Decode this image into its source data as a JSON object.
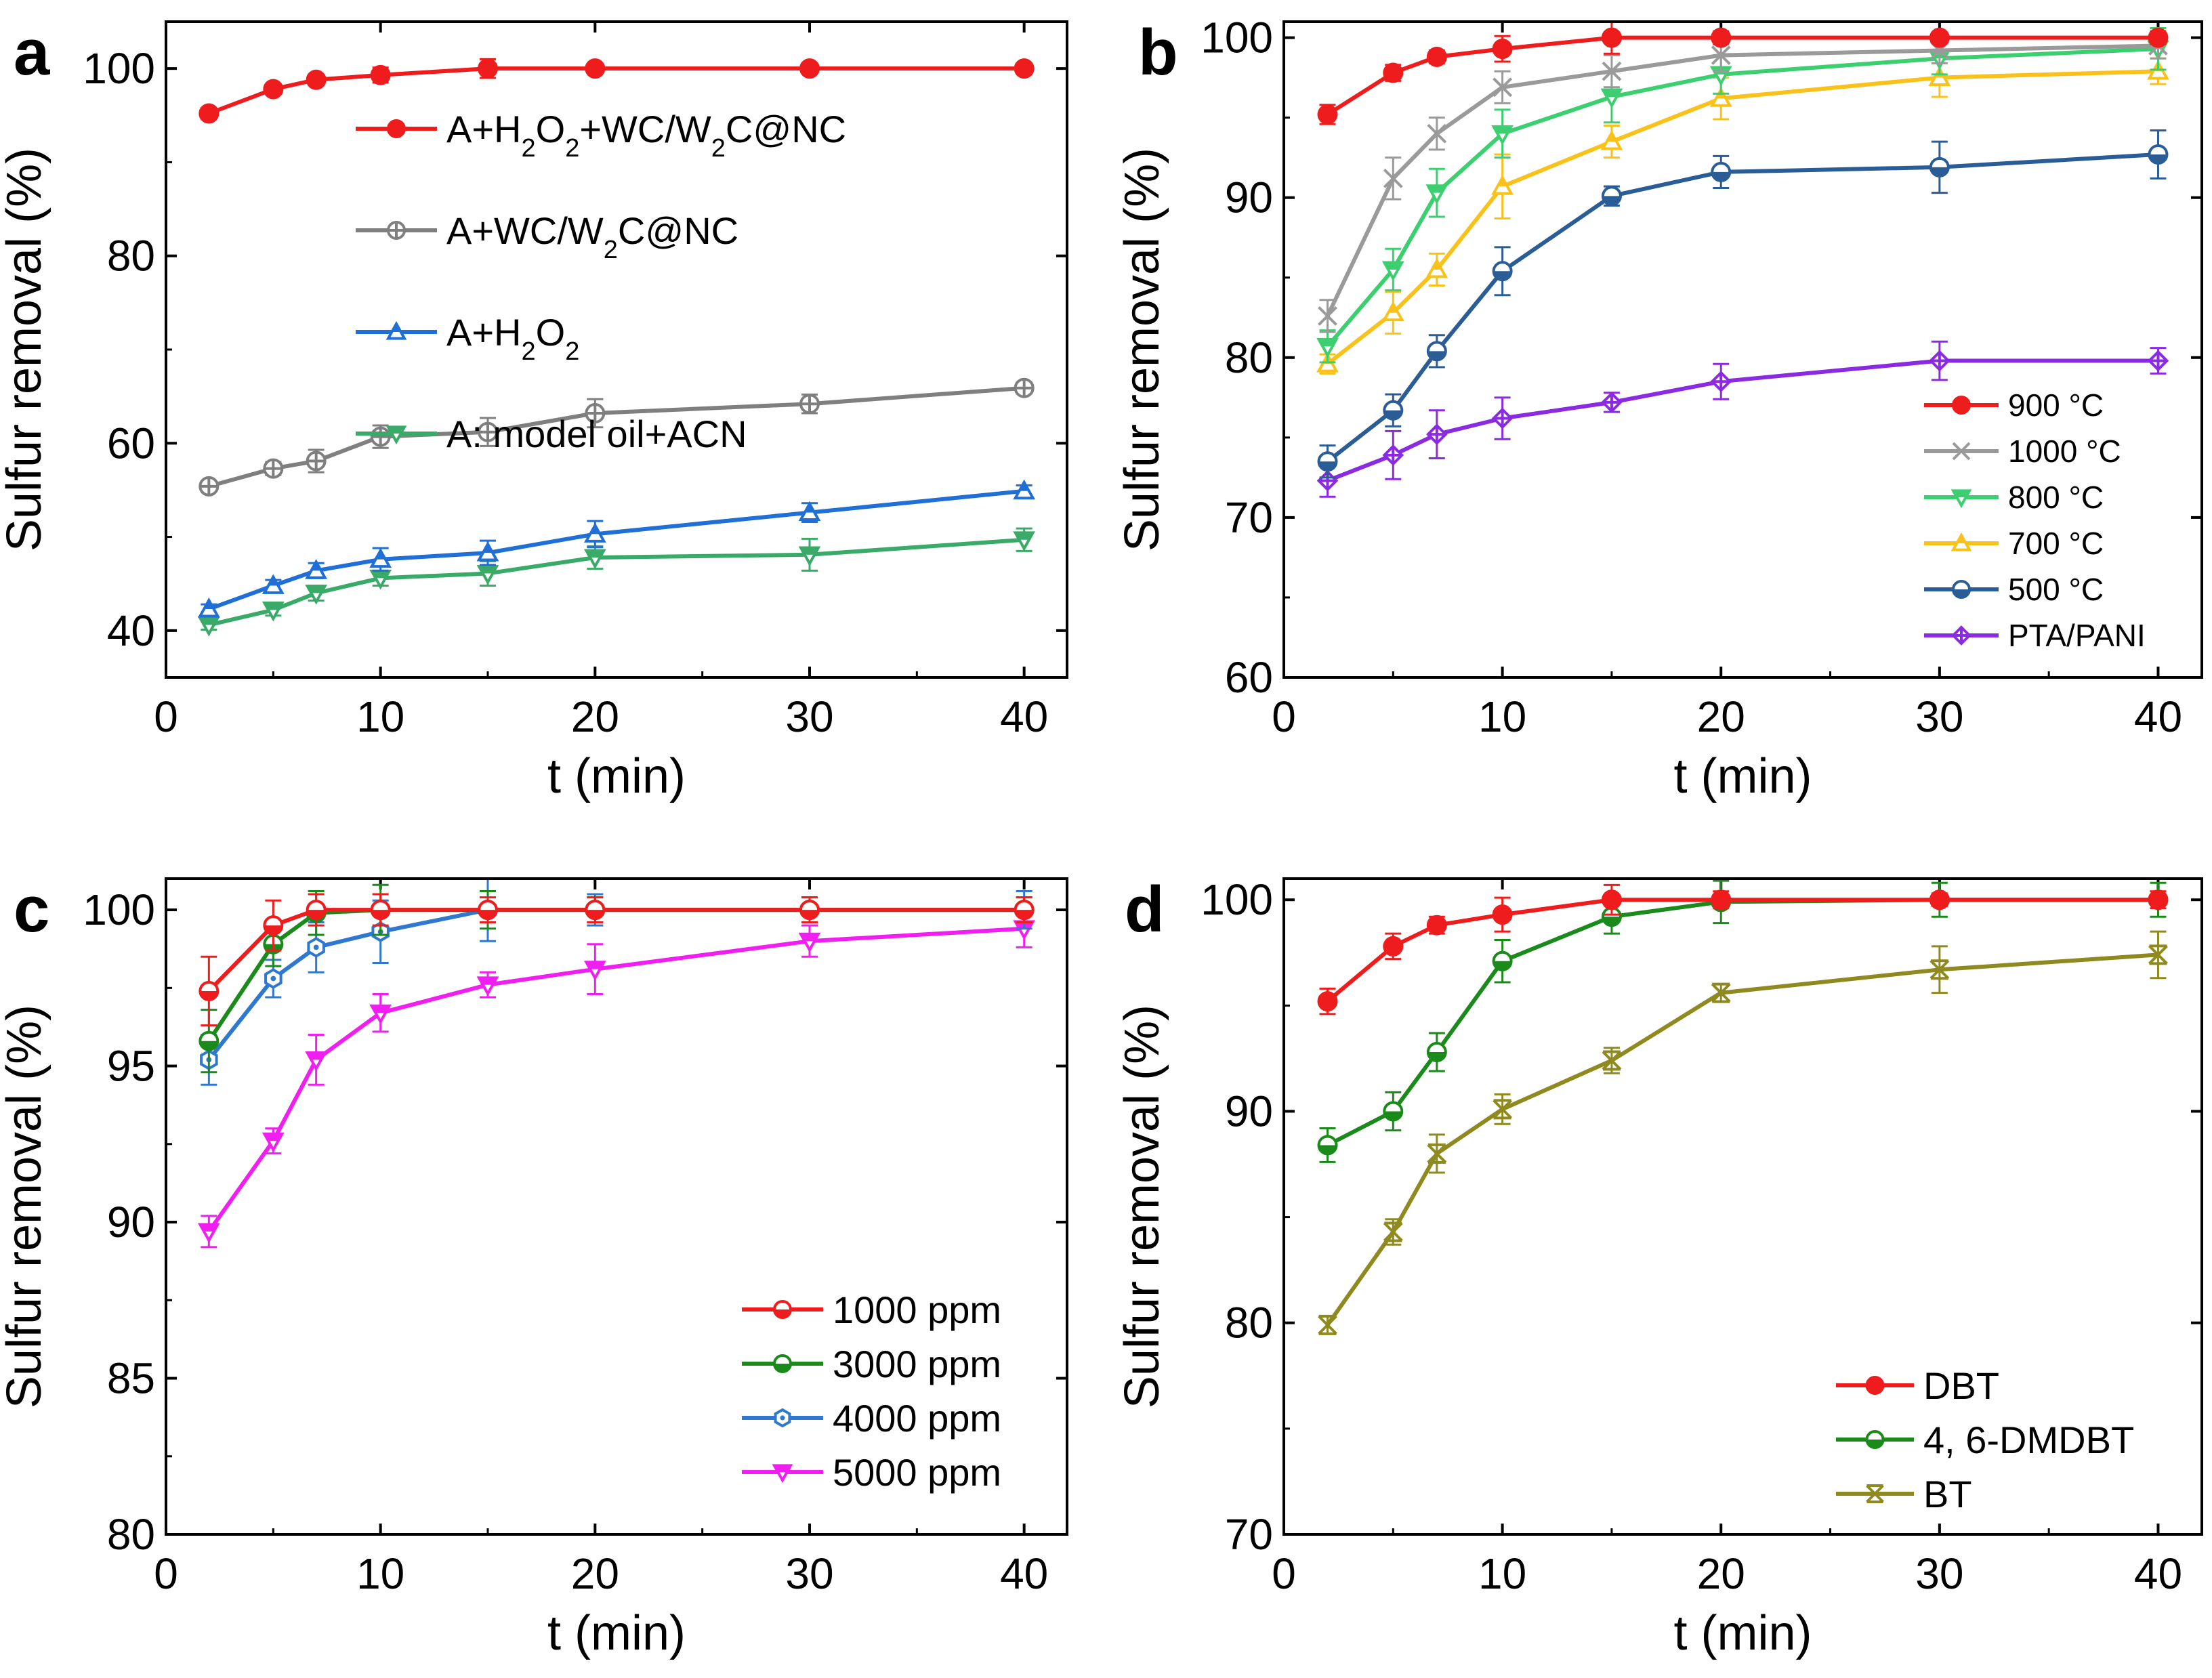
{
  "figure": {
    "panels": [
      "a",
      "b",
      "c",
      "d"
    ]
  },
  "chart_data": [
    {
      "id": "a",
      "type": "line",
      "panel_label": "a",
      "xlabel": "t (min)",
      "ylabel": "Sulfur removal (%)",
      "xlim": [
        0,
        42
      ],
      "ylim": [
        35,
        105
      ],
      "xticks": [
        0,
        10,
        20,
        30,
        40
      ],
      "yticks": [
        40,
        60,
        80,
        100
      ],
      "x": [
        2,
        5,
        7,
        10,
        15,
        20,
        30,
        40
      ],
      "legend_position": "top-center",
      "series": [
        {
          "name": "A+H2O2+WC/W2C@NC",
          "legend": [
            [
              "A+H",
              ""
            ],
            [
              "2",
              "sub"
            ],
            [
              "O",
              ""
            ],
            [
              "2",
              "sub"
            ],
            [
              "+WC/W",
              ""
            ],
            [
              "2",
              "sub"
            ],
            [
              "C@NC",
              ""
            ]
          ],
          "color": "#ee1c1c",
          "marker": "circle",
          "values": [
            95.2,
            97.8,
            98.8,
            99.3,
            100,
            100,
            100,
            100
          ],
          "errors": [
            0.6,
            0.5,
            0.4,
            0.8,
            1.0,
            0.4,
            0.3,
            0.4
          ]
        },
        {
          "name": "A+WC/W2C@NC",
          "legend": [
            [
              "A+WC/W",
              ""
            ],
            [
              "2",
              "sub"
            ],
            [
              "C@NC",
              ""
            ]
          ],
          "color": "#7f7f7f",
          "marker": "circle-cross",
          "values": [
            55.4,
            57.3,
            58.1,
            60.7,
            61.2,
            63.2,
            64.2,
            65.9
          ],
          "errors": [
            0.5,
            0.7,
            1.2,
            1.2,
            1.5,
            1.5,
            1.0,
            0.6
          ]
        },
        {
          "name": "A+H2O2",
          "legend": [
            [
              "A+H",
              ""
            ],
            [
              "2",
              "sub"
            ],
            [
              "O",
              ""
            ],
            [
              "2",
              "sub"
            ]
          ],
          "color": "#1f6fd6",
          "marker": "triangle-up",
          "values": [
            42.3,
            44.8,
            46.4,
            47.6,
            48.3,
            50.3,
            52.6,
            54.9
          ],
          "errors": [
            0.5,
            0.6,
            0.8,
            1.2,
            1.3,
            1.4,
            1.0,
            0.6
          ]
        },
        {
          "name": "A: model oil+ACN",
          "legend": [
            [
              "A: model oil+ACN",
              ""
            ]
          ],
          "color": "#3aaa68",
          "marker": "triangle-down",
          "values": [
            40.6,
            42.2,
            44.0,
            45.6,
            46.1,
            47.8,
            48.1,
            49.7
          ],
          "errors": [
            0.5,
            0.6,
            0.8,
            0.8,
            1.3,
            1.2,
            1.7,
            1.2
          ]
        }
      ]
    },
    {
      "id": "b",
      "type": "line",
      "panel_label": "b",
      "xlabel": "t (min)",
      "ylabel": "Sulfur removal (%)",
      "xlim": [
        0,
        42
      ],
      "ylim": [
        60,
        101
      ],
      "xticks": [
        0,
        10,
        20,
        30,
        40
      ],
      "yticks": [
        60,
        70,
        80,
        90,
        100
      ],
      "x": [
        2,
        5,
        7,
        10,
        15,
        20,
        30,
        40
      ],
      "legend_position": "bottom-right",
      "series": [
        {
          "name": "900 °C",
          "legend": [
            [
              "900 °C",
              ""
            ]
          ],
          "color": "#ee1c1c",
          "marker": "circle",
          "values": [
            95.2,
            97.8,
            98.8,
            99.3,
            100,
            100,
            100,
            100
          ],
          "errors": [
            0.6,
            0.5,
            0.4,
            0.8,
            1.0,
            0.4,
            0.3,
            0.4
          ]
        },
        {
          "name": "1000 °C",
          "legend": [
            [
              "1000 °C",
              ""
            ]
          ],
          "color": "#9a9a9a",
          "marker": "x",
          "values": [
            82.6,
            91.2,
            94.0,
            96.9,
            97.9,
            98.9,
            99.2,
            99.5
          ],
          "errors": [
            1.0,
            1.3,
            1.0,
            1.0,
            1.0,
            1.0,
            0.8,
            0.8
          ]
        },
        {
          "name": "800 °C",
          "legend": [
            [
              "800 °C",
              ""
            ]
          ],
          "color": "#3ccf6f",
          "marker": "triangle-down",
          "values": [
            80.7,
            85.5,
            90.3,
            94.0,
            96.3,
            97.7,
            98.7,
            99.3
          ],
          "errors": [
            1.0,
            1.3,
            1.5,
            1.5,
            1.6,
            1.2,
            1.0,
            1.3
          ]
        },
        {
          "name": "700 °C",
          "legend": [
            [
              "700 °C",
              ""
            ]
          ],
          "color": "#f9c21a",
          "marker": "triangle-up",
          "values": [
            79.6,
            82.8,
            85.5,
            90.7,
            93.5,
            96.2,
            97.5,
            97.9
          ],
          "errors": [
            0.6,
            1.3,
            1.0,
            2.0,
            1.0,
            1.3,
            1.2,
            0.8
          ]
        },
        {
          "name": "500 °C",
          "legend": [
            [
              "500 °C",
              ""
            ]
          ],
          "color": "#2a5c96",
          "marker": "circle-half",
          "values": [
            73.5,
            76.7,
            80.4,
            85.4,
            90.1,
            91.6,
            91.9,
            92.7
          ],
          "errors": [
            1.0,
            1.0,
            1.0,
            1.5,
            0.6,
            1.0,
            1.6,
            1.5
          ]
        },
        {
          "name": "PTA/PANI",
          "legend": [
            [
              "PTA/PANI",
              ""
            ]
          ],
          "color": "#8a2be2",
          "marker": "diamond-cross",
          "values": [
            72.3,
            73.9,
            75.2,
            76.2,
            77.2,
            78.5,
            79.8,
            79.8
          ],
          "errors": [
            1.0,
            1.5,
            1.5,
            1.3,
            0.6,
            1.1,
            1.2,
            0.8
          ]
        }
      ]
    },
    {
      "id": "c",
      "type": "line",
      "panel_label": "c",
      "xlabel": "t (min)",
      "ylabel": "Sulfur removal (%)",
      "xlim": [
        0,
        42
      ],
      "ylim": [
        80,
        101
      ],
      "xticks": [
        0,
        10,
        20,
        30,
        40
      ],
      "yticks": [
        80,
        85,
        90,
        95,
        100
      ],
      "x": [
        2,
        5,
        7,
        10,
        15,
        20,
        30,
        40
      ],
      "legend_position": "bottom-right",
      "series": [
        {
          "name": "1000 ppm",
          "legend": [
            [
              "1000 ppm",
              ""
            ]
          ],
          "color": "#ee1c1c",
          "marker": "circle-half",
          "values": [
            97.4,
            99.5,
            100,
            100,
            100,
            100,
            100,
            100
          ],
          "errors": [
            1.1,
            0.8,
            0.5,
            0.5,
            0.4,
            0.4,
            0.4,
            0.4
          ]
        },
        {
          "name": "3000 ppm",
          "legend": [
            [
              "3000 ppm",
              ""
            ]
          ],
          "color": "#1a8a1a",
          "marker": "circle-half",
          "values": [
            95.8,
            98.9,
            99.9,
            100,
            100,
            100,
            100,
            100
          ],
          "errors": [
            1.0,
            0.7,
            0.7,
            0.8,
            0.6,
            0.4,
            0.4,
            0.4
          ]
        },
        {
          "name": "4000 ppm",
          "legend": [
            [
              "4000 ppm",
              ""
            ]
          ],
          "color": "#2f78d0",
          "marker": "hexagon",
          "values": [
            95.2,
            97.8,
            98.8,
            99.3,
            100,
            100,
            100,
            100
          ],
          "errors": [
            0.8,
            0.6,
            0.8,
            1.0,
            1.0,
            0.5,
            0.4,
            0.6
          ]
        },
        {
          "name": "5000 ppm",
          "legend": [
            [
              "5000 ppm",
              ""
            ]
          ],
          "color": "#f01ef0",
          "marker": "triangle-down",
          "values": [
            89.7,
            92.6,
            95.2,
            96.7,
            97.6,
            98.1,
            99.0,
            99.4
          ],
          "errors": [
            0.5,
            0.4,
            0.8,
            0.6,
            0.4,
            0.8,
            0.5,
            0.6
          ]
        }
      ]
    },
    {
      "id": "d",
      "type": "line",
      "panel_label": "d",
      "xlabel": "t (min)",
      "ylabel": "Sulfur removal (%)",
      "xlim": [
        0,
        42
      ],
      "ylim": [
        70,
        101
      ],
      "xticks": [
        0,
        10,
        20,
        30,
        40
      ],
      "yticks": [
        70,
        80,
        90,
        100
      ],
      "x": [
        2,
        5,
        7,
        10,
        15,
        20,
        30,
        40
      ],
      "legend_position": "bottom-right",
      "series": [
        {
          "name": "DBT",
          "legend": [
            [
              "DBT",
              ""
            ]
          ],
          "color": "#ee1c1c",
          "marker": "circle",
          "values": [
            95.2,
            97.8,
            98.8,
            99.3,
            100,
            100,
            100,
            100
          ],
          "errors": [
            0.6,
            0.6,
            0.4,
            0.8,
            0.7,
            0.4,
            0.3,
            0.4
          ]
        },
        {
          "name": "4, 6-DMDBT",
          "legend": [
            [
              "4, 6-DMDBT",
              ""
            ]
          ],
          "color": "#1a8a1a",
          "marker": "circle-half",
          "values": [
            88.4,
            90.0,
            92.8,
            97.1,
            99.2,
            99.9,
            100,
            100
          ],
          "errors": [
            0.8,
            0.9,
            0.9,
            1.0,
            0.8,
            1.0,
            0.8,
            0.8
          ]
        },
        {
          "name": "BT",
          "legend": [
            [
              "BT",
              ""
            ]
          ],
          "color": "#8f8a1f",
          "marker": "x-box",
          "values": [
            79.9,
            84.3,
            88.0,
            90.1,
            92.4,
            95.6,
            96.7,
            97.4
          ],
          "errors": [
            0.4,
            0.6,
            0.9,
            0.7,
            0.6,
            0.4,
            1.1,
            1.1
          ]
        }
      ]
    }
  ]
}
